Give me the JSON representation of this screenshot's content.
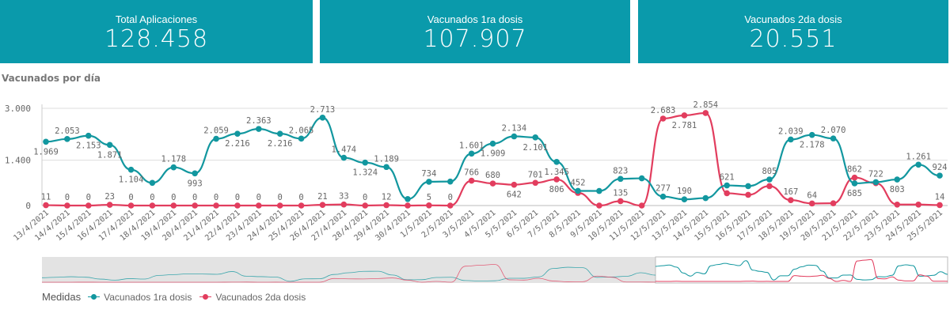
{
  "cards": [
    {
      "title": "Total Aplicaciones",
      "value": "128.458"
    },
    {
      "title": "Vacunados 1ra dosis",
      "value": "107.907"
    },
    {
      "title": "Vacunados 2da dosis",
      "value": "20.551"
    }
  ],
  "colors": {
    "card": "#0a9aab",
    "series1": "#12979f",
    "series2": "#e23d5e"
  },
  "chart_data": {
    "type": "line",
    "title": "Vacunados por día",
    "xlabel": "",
    "ylabel": "",
    "ylim": [
      0,
      3000
    ],
    "yticks": [
      "0",
      "1.400",
      "3.000"
    ],
    "ytick_values": [
      0,
      1400,
      3000
    ],
    "grid": true,
    "legend_title": "Medidas",
    "legend_position": "bottom-left",
    "categories": [
      "13/4/2021",
      "14/4/2021",
      "15/4/2021",
      "16/4/2021",
      "17/4/2021",
      "18/4/2021",
      "19/4/2021",
      "20/4/2021",
      "21/4/2021",
      "22/4/2021",
      "23/4/2021",
      "24/4/2021",
      "25/4/2021",
      "26/4/2021",
      "27/4/2021",
      "28/4/2021",
      "29/4/2021",
      "30/4/2021",
      "1/5/2021",
      "2/5/2021",
      "3/5/2021",
      "4/5/2021",
      "5/5/2021",
      "6/5/2021",
      "7/5/2021",
      "8/5/2021",
      "9/5/2021",
      "10/5/2021",
      "11/5/2021",
      "12/5/2021",
      "13/5/2021",
      "14/5/2021",
      "15/5/2021",
      "16/5/2021",
      "17/5/2021",
      "18/5/2021",
      "19/5/2021",
      "20/5/2021",
      "21/5/2021",
      "22/5/2021",
      "23/5/2021",
      "24/5/2021",
      "25/5/2021"
    ],
    "series": [
      {
        "name": "Vacunados 1ra dosis",
        "values": [
          1969,
          2053,
          2153,
          1871,
          1104,
          700,
          1178,
          993,
          2059,
          2216,
          2363,
          2216,
          2065,
          2713,
          1474,
          1324,
          1189,
          200,
          734,
          740,
          1601,
          1909,
          2134,
          2101,
          1345,
          452,
          450,
          823,
          840,
          277,
          190,
          230,
          621,
          600,
          805,
          2039,
          2178,
          2070,
          685,
          722,
          803,
          1261,
          924
        ],
        "labels": [
          "1.969",
          "2.053",
          "2.153",
          "1.871",
          "1.104",
          null,
          "1.178",
          "993",
          "2.059",
          "2.216",
          "2.363",
          "2.216",
          "2.065",
          "2.713",
          "1.474",
          "1.324",
          "1.189",
          null,
          "734",
          null,
          "1.601",
          "1.909",
          "2.134",
          "2.101",
          "1.345",
          "452",
          null,
          "823",
          null,
          "277",
          "190",
          null,
          "621",
          null,
          "805",
          "2.039",
          "2.178",
          "2.070",
          "685",
          "722",
          "803",
          "1.261",
          "924"
        ]
      },
      {
        "name": "Vacunados 2da dosis",
        "values": [
          11,
          0,
          0,
          23,
          0,
          0,
          0,
          0,
          0,
          0,
          0,
          0,
          0,
          21,
          33,
          0,
          12,
          0,
          5,
          0,
          766,
          680,
          642,
          701,
          806,
          390,
          0,
          135,
          0,
          2683,
          2781,
          2854,
          380,
          330,
          600,
          167,
          64,
          70,
          862,
          690,
          30,
          30,
          14
        ],
        "labels": [
          "11",
          "0",
          "0",
          "23",
          "0",
          "0",
          "0",
          "0",
          "0",
          "0",
          "0",
          "0",
          "0",
          "21",
          "33",
          "0",
          "12",
          null,
          "5",
          "0",
          "766",
          "680",
          "642",
          "701",
          "806",
          null,
          null,
          "135",
          null,
          "2.683",
          "2.781",
          "2.854",
          null,
          null,
          null,
          "167",
          "64",
          null,
          "862",
          null,
          null,
          null,
          "14"
        ]
      }
    ]
  }
}
